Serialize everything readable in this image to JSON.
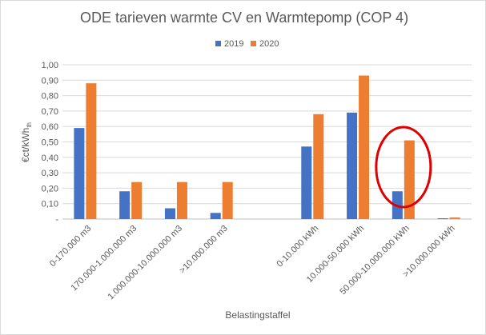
{
  "chart_data": {
    "type": "bar",
    "title": "ODE tarieven warmte CV en Warmtepomp (COP 4)",
    "ylabel_main": "€ct/kWh",
    "ylabel_sub": "th",
    "xlabel": "Belastingstaffel",
    "ylim": [
      0,
      1.0
    ],
    "yticks": [
      "-",
      "0,10",
      "0,20",
      "0,30",
      "0,40",
      "0,50",
      "0,60",
      "0,70",
      "0,80",
      "0,90",
      "1,00"
    ],
    "grid": true,
    "legend_position": "top",
    "categories": [
      "0-170.000 m3",
      "170.000-1.000.000 m3",
      "1.000.000-10.000.000 m3",
      ">10.000.000 m3",
      "",
      "0-10.000 kWh",
      "10.000-50.000 kWh",
      "50.000-10.000.000 kWh",
      ">10.000.000 kWh"
    ],
    "series": [
      {
        "name": "2019",
        "color": "#4472C4",
        "values": [
          0.59,
          0.18,
          0.07,
          0.04,
          null,
          0.47,
          0.69,
          0.18,
          0.005
        ]
      },
      {
        "name": "2020",
        "color": "#ED7D31",
        "values": [
          0.88,
          0.24,
          0.24,
          0.24,
          null,
          0.68,
          0.93,
          0.51,
          0.01
        ]
      }
    ],
    "annotation": {
      "type": "ellipse",
      "color": "#E00000",
      "category_index": 7
    }
  }
}
